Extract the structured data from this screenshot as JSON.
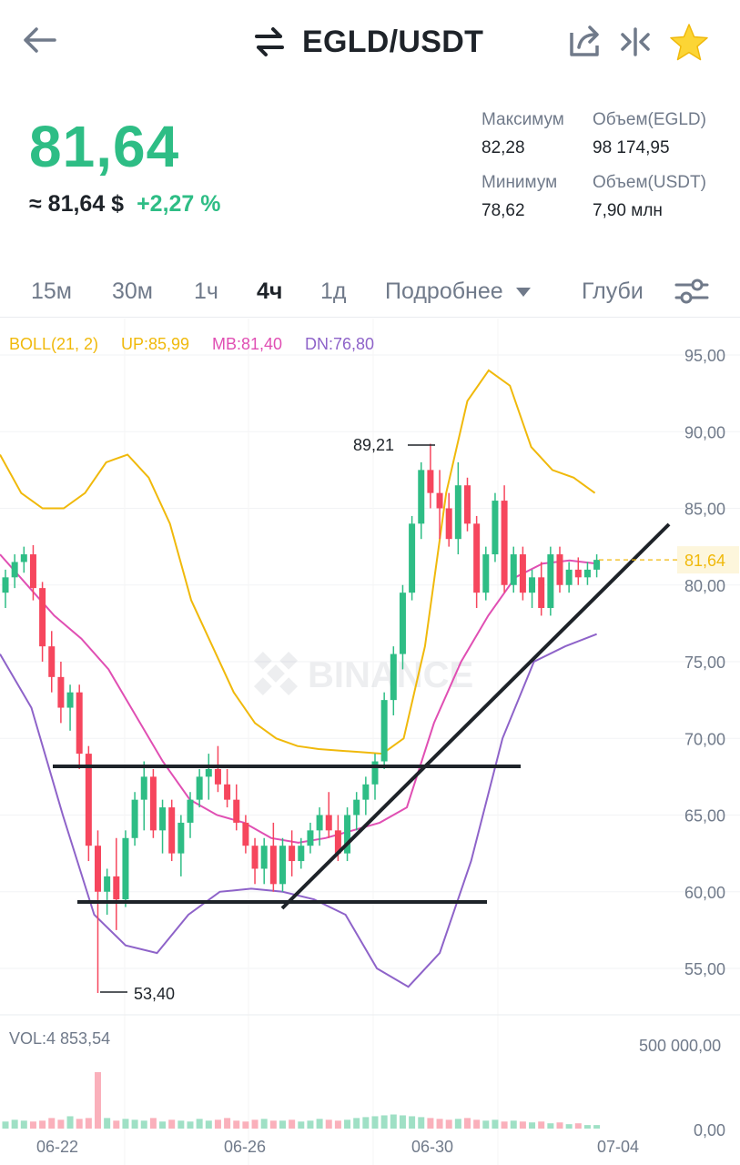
{
  "header": {
    "back_icon": "arrow-left-icon",
    "swap_icon": "swap-arrows-icon",
    "title": "EGLD/USDT",
    "share_icon": "share-icon",
    "compare_icon": "split-view-icon",
    "favorite_icon": "star-icon"
  },
  "price": {
    "last": "81,64",
    "approx": "≈ 81,64 $",
    "change_pct": "+2,27 %",
    "up_color": "#2ebd85"
  },
  "stats": {
    "high_label": "Максимум",
    "high_value": "82,28",
    "low_label": "Минимум",
    "low_value": "78,62",
    "vol_base_label": "Объем(EGLD)",
    "vol_base_value": "98 174,95",
    "vol_quote_label": "Объем(USDT)",
    "vol_quote_value": "7,90 млн"
  },
  "tabs": [
    {
      "label": "15м",
      "active": false
    },
    {
      "label": "30м",
      "active": false
    },
    {
      "label": "1ч",
      "active": false
    },
    {
      "label": "4ч",
      "active": true
    },
    {
      "label": "1д",
      "active": false
    },
    {
      "label": "Подробнее",
      "active": false
    },
    {
      "label": "Глуби",
      "active": false
    }
  ],
  "settings_icon": "sliders-icon",
  "more_icon": "caret-down-icon",
  "chart_data": {
    "type": "candlestick",
    "indicator": {
      "name": "BOLL(21, 2)",
      "up_label": "UP:85,99",
      "mb_label": "MB:81,40",
      "dn_label": "DN:76,80",
      "up_color": "#f0b90b",
      "mb_color": "#e04fb3",
      "dn_color": "#8e63c9"
    },
    "y_ticks": [
      "95,00",
      "90,00",
      "85,00",
      "80,00",
      "75,00",
      "70,00",
      "65,00",
      "60,00",
      "55,00"
    ],
    "ylim": [
      52,
      97
    ],
    "x_ticks": [
      "06-22",
      "06-26",
      "06-30",
      "07-04"
    ],
    "current_price_label": "81,64",
    "high_marker": "89,21",
    "low_marker": "53,40",
    "watermark": "BINANCE",
    "candles": [
      [
        79.5,
        81.0,
        78.5,
        80.5
      ],
      [
        80.5,
        82.0,
        79.8,
        81.5
      ],
      [
        81.5,
        82.5,
        80.8,
        82.0
      ],
      [
        82.0,
        82.6,
        79.0,
        79.8
      ],
      [
        79.8,
        80.2,
        75.0,
        76.0
      ],
      [
        76.0,
        77.0,
        73.0,
        74.0
      ],
      [
        74.0,
        75.0,
        71.0,
        72.0
      ],
      [
        72.0,
        73.5,
        70.5,
        73.0
      ],
      [
        73.0,
        73.5,
        68.0,
        69.0
      ],
      [
        69.0,
        69.5,
        62.0,
        63.0
      ],
      [
        63.0,
        64.0,
        53.4,
        60.0
      ],
      [
        60.0,
        61.5,
        58.5,
        61.0
      ],
      [
        61.0,
        63.5,
        57.5,
        59.5
      ],
      [
        59.5,
        64.0,
        59.0,
        63.5
      ],
      [
        63.5,
        66.5,
        63.0,
        66.0
      ],
      [
        66.0,
        68.5,
        64.0,
        67.5
      ],
      [
        67.5,
        68.0,
        63.5,
        64.0
      ],
      [
        64.0,
        66.0,
        62.5,
        65.5
      ],
      [
        65.5,
        66.0,
        62.0,
        62.5
      ],
      [
        62.5,
        65.0,
        61.0,
        64.5
      ],
      [
        64.5,
        66.5,
        63.5,
        66.0
      ],
      [
        66.0,
        68.0,
        65.5,
        67.5
      ],
      [
        67.5,
        69.0,
        66.0,
        68.0
      ],
      [
        68.0,
        69.5,
        66.5,
        67.0
      ],
      [
        67.0,
        68.0,
        65.5,
        66.0
      ],
      [
        66.0,
        67.0,
        64.0,
        64.5
      ],
      [
        64.5,
        65.0,
        62.5,
        63.0
      ],
      [
        63.0,
        63.5,
        60.5,
        61.5
      ],
      [
        61.5,
        63.5,
        60.5,
        63.0
      ],
      [
        63.0,
        64.5,
        60.0,
        60.5
      ],
      [
        60.5,
        63.5,
        60.0,
        63.0
      ],
      [
        63.0,
        64.0,
        61.0,
        62.0
      ],
      [
        62.0,
        63.5,
        61.5,
        63.0
      ],
      [
        63.0,
        64.5,
        62.5,
        64.0
      ],
      [
        64.0,
        65.5,
        63.0,
        65.0
      ],
      [
        65.0,
        66.5,
        63.5,
        64.0
      ],
      [
        64.0,
        65.0,
        62.0,
        62.5
      ],
      [
        62.5,
        65.5,
        62.0,
        65.0
      ],
      [
        65.0,
        66.5,
        64.0,
        66.0
      ],
      [
        66.0,
        67.5,
        65.0,
        67.0
      ],
      [
        67.0,
        69.0,
        66.0,
        68.5
      ],
      [
        68.5,
        73.0,
        68.0,
        72.5
      ],
      [
        72.5,
        76.0,
        71.5,
        75.5
      ],
      [
        75.5,
        80.0,
        74.5,
        79.5
      ],
      [
        79.5,
        84.5,
        79.0,
        84.0
      ],
      [
        84.0,
        88.0,
        83.0,
        87.5
      ],
      [
        87.5,
        89.21,
        85.0,
        86.0
      ],
      [
        86.0,
        87.5,
        83.0,
        85.0
      ],
      [
        85.0,
        86.0,
        82.5,
        83.0
      ],
      [
        83.0,
        88.0,
        82.0,
        86.5
      ],
      [
        86.5,
        87.0,
        83.5,
        84.0
      ],
      [
        84.0,
        84.5,
        78.5,
        79.5
      ],
      [
        79.5,
        82.5,
        79.0,
        82.0
      ],
      [
        82.0,
        86.0,
        81.5,
        85.5
      ],
      [
        85.5,
        86.5,
        79.5,
        80.0
      ],
      [
        80.0,
        82.5,
        79.5,
        82.0
      ],
      [
        82.0,
        82.5,
        79.0,
        79.5
      ],
      [
        79.5,
        81.0,
        78.5,
        80.5
      ],
      [
        80.5,
        81.5,
        78.0,
        78.5
      ],
      [
        78.5,
        82.5,
        78.0,
        82.0
      ],
      [
        82.0,
        82.5,
        79.5,
        80.0
      ],
      [
        80.0,
        81.5,
        79.5,
        81.0
      ],
      [
        81.0,
        81.8,
        80.0,
        80.5
      ],
      [
        80.5,
        81.5,
        80.0,
        81.0
      ],
      [
        81.0,
        82.0,
        80.5,
        81.64
      ]
    ],
    "bollinger": {
      "up": [
        88.5,
        86.0,
        85.0,
        85.0,
        86.0,
        88.0,
        88.5,
        87.0,
        84.0,
        79.0,
        76.0,
        73.0,
        71.0,
        70.0,
        69.5,
        69.3,
        69.2,
        69.1,
        69.0,
        70.0,
        76.0,
        86.0,
        92.0,
        94.0,
        93.0,
        89.0,
        87.5,
        87.0,
        86.0
      ],
      "mb": [
        82.0,
        80.0,
        78.0,
        76.5,
        74.5,
        71.5,
        68.5,
        66.0,
        65.0,
        64.5,
        63.5,
        63.2,
        63.5,
        64.0,
        64.5,
        65.5,
        71.0,
        75.0,
        78.0,
        80.5,
        81.4,
        81.6,
        81.4
      ],
      "dn": [
        75.5,
        72.0,
        65.0,
        58.5,
        56.5,
        56.0,
        58.5,
        60.0,
        60.2,
        60.0,
        59.5,
        58.5,
        55.0,
        53.8,
        56.0,
        62.0,
        70.0,
        75.0,
        76.0,
        76.8
      ]
    },
    "volume": {
      "label": "VOL:4 853,54",
      "y_ticks": [
        "500 000,00",
        "0,00"
      ],
      "values": [
        8,
        10,
        9,
        8,
        9,
        12,
        10,
        14,
        11,
        12,
        64,
        12,
        9,
        11,
        10,
        9,
        12,
        8,
        10,
        9,
        8,
        11,
        9,
        10,
        12,
        9,
        8,
        10,
        11,
        9,
        9,
        10,
        8,
        9,
        11,
        10,
        9,
        10,
        12,
        13,
        14,
        15,
        16,
        15,
        14,
        13,
        12,
        11,
        10,
        11,
        12,
        10,
        9,
        10,
        8,
        9,
        8,
        7,
        8,
        6,
        7,
        5,
        6,
        4,
        4
      ]
    }
  }
}
